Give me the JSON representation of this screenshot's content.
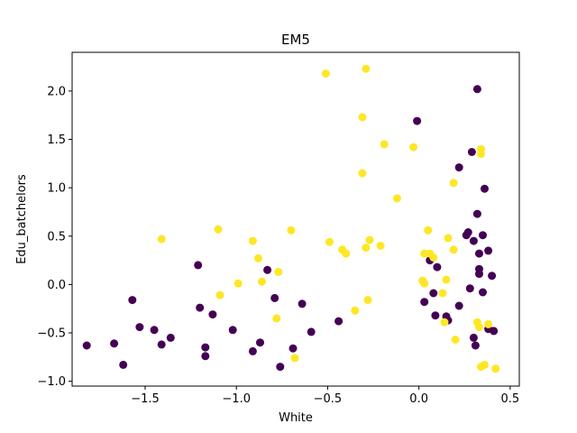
{
  "chart_data": {
    "type": "scatter",
    "title": "EM5",
    "xlabel": "White",
    "ylabel": "Edu_batchelors",
    "xlim": [
      -1.9,
      0.55
    ],
    "ylim": [
      -1.05,
      2.4
    ],
    "xticks": [
      -1.5,
      -1.0,
      -0.5,
      0.0,
      0.5
    ],
    "yticks": [
      -1.0,
      -0.5,
      0.0,
      0.5,
      1.0,
      1.5,
      2.0
    ],
    "xtick_labels": [
      "−1.5",
      "−1.0",
      "−0.5",
      "0.0",
      "0.5"
    ],
    "ytick_labels": [
      "−1.0",
      "−0.5",
      "0.0",
      "0.5",
      "1.0",
      "1.5",
      "2.0"
    ],
    "grid": false,
    "colors": {
      "group_0": "#440154",
      "group_1": "#fde725"
    },
    "series": [
      {
        "color": "#440154",
        "points": [
          [
            -1.82,
            -0.63
          ],
          [
            -1.67,
            -0.61
          ],
          [
            -1.62,
            -0.83
          ],
          [
            -1.57,
            -0.16
          ],
          [
            -1.53,
            -0.44
          ],
          [
            -1.45,
            -0.47
          ],
          [
            -1.41,
            -0.62
          ],
          [
            -1.36,
            -0.55
          ],
          [
            -1.21,
            0.2
          ],
          [
            -1.2,
            -0.24
          ],
          [
            -1.17,
            -0.65
          ],
          [
            -1.17,
            -0.74
          ],
          [
            -1.13,
            -0.31
          ],
          [
            -1.02,
            -0.47
          ],
          [
            -0.91,
            -0.69
          ],
          [
            -0.87,
            -0.6
          ],
          [
            -0.83,
            0.15
          ],
          [
            -0.79,
            -0.14
          ],
          [
            -0.76,
            -0.85
          ],
          [
            -0.69,
            -0.66
          ],
          [
            -0.64,
            -0.2
          ],
          [
            -0.59,
            -0.49
          ],
          [
            -0.44,
            -0.38
          ],
          [
            -0.01,
            1.69
          ],
          [
            0.03,
            -0.18
          ],
          [
            0.06,
            0.25
          ],
          [
            0.08,
            -0.09
          ],
          [
            0.09,
            -0.32
          ],
          [
            0.1,
            0.18
          ],
          [
            0.15,
            -0.33
          ],
          [
            0.16,
            -0.37
          ],
          [
            0.22,
            1.21
          ],
          [
            0.22,
            -0.22
          ],
          [
            0.26,
            0.51
          ],
          [
            0.27,
            0.54
          ],
          [
            0.28,
            -0.04
          ],
          [
            0.29,
            1.37
          ],
          [
            0.3,
            0.45
          ],
          [
            0.3,
            -0.55
          ],
          [
            0.31,
            -0.63
          ],
          [
            0.32,
            2.02
          ],
          [
            0.32,
            0.73
          ],
          [
            0.33,
            0.32
          ],
          [
            0.33,
            0.16
          ],
          [
            0.33,
            0.11
          ],
          [
            0.35,
            -0.08
          ],
          [
            0.35,
            0.51
          ],
          [
            0.36,
            0.99
          ],
          [
            0.38,
            0.35
          ],
          [
            0.38,
            -0.46
          ],
          [
            0.4,
            0.09
          ],
          [
            0.41,
            -0.48
          ]
        ]
      },
      {
        "color": "#fde725",
        "points": [
          [
            -1.41,
            0.47
          ],
          [
            -1.1,
            0.57
          ],
          [
            -1.09,
            -0.11
          ],
          [
            -0.99,
            0.01
          ],
          [
            -0.91,
            0.45
          ],
          [
            -0.88,
            0.27
          ],
          [
            -0.86,
            0.03
          ],
          [
            -0.78,
            -0.35
          ],
          [
            -0.77,
            0.13
          ],
          [
            -0.7,
            0.56
          ],
          [
            -0.68,
            -0.76
          ],
          [
            -0.51,
            2.18
          ],
          [
            -0.49,
            0.44
          ],
          [
            -0.42,
            0.36
          ],
          [
            -0.4,
            0.32
          ],
          [
            -0.35,
            -0.27
          ],
          [
            -0.31,
            1.73
          ],
          [
            -0.31,
            1.15
          ],
          [
            -0.29,
            2.23
          ],
          [
            -0.29,
            0.38
          ],
          [
            -0.28,
            -0.16
          ],
          [
            -0.27,
            0.46
          ],
          [
            -0.21,
            0.4
          ],
          [
            -0.19,
            1.45
          ],
          [
            -0.12,
            0.89
          ],
          [
            -0.03,
            1.42
          ],
          [
            0.02,
            0.04
          ],
          [
            0.03,
            0.32
          ],
          [
            0.03,
            0.01
          ],
          [
            0.05,
            0.56
          ],
          [
            0.06,
            0.32
          ],
          [
            0.08,
            0.28
          ],
          [
            0.13,
            -0.09
          ],
          [
            0.14,
            -0.39
          ],
          [
            0.15,
            0.05
          ],
          [
            0.16,
            0.48
          ],
          [
            0.19,
            0.36
          ],
          [
            0.19,
            1.05
          ],
          [
            0.2,
            -0.57
          ],
          [
            0.32,
            -0.39
          ],
          [
            0.33,
            -0.44
          ],
          [
            0.34,
            1.4
          ],
          [
            0.34,
            1.35
          ],
          [
            0.34,
            -0.85
          ],
          [
            0.36,
            -0.83
          ],
          [
            0.38,
            -0.41
          ],
          [
            0.42,
            -0.87
          ]
        ]
      }
    ]
  }
}
